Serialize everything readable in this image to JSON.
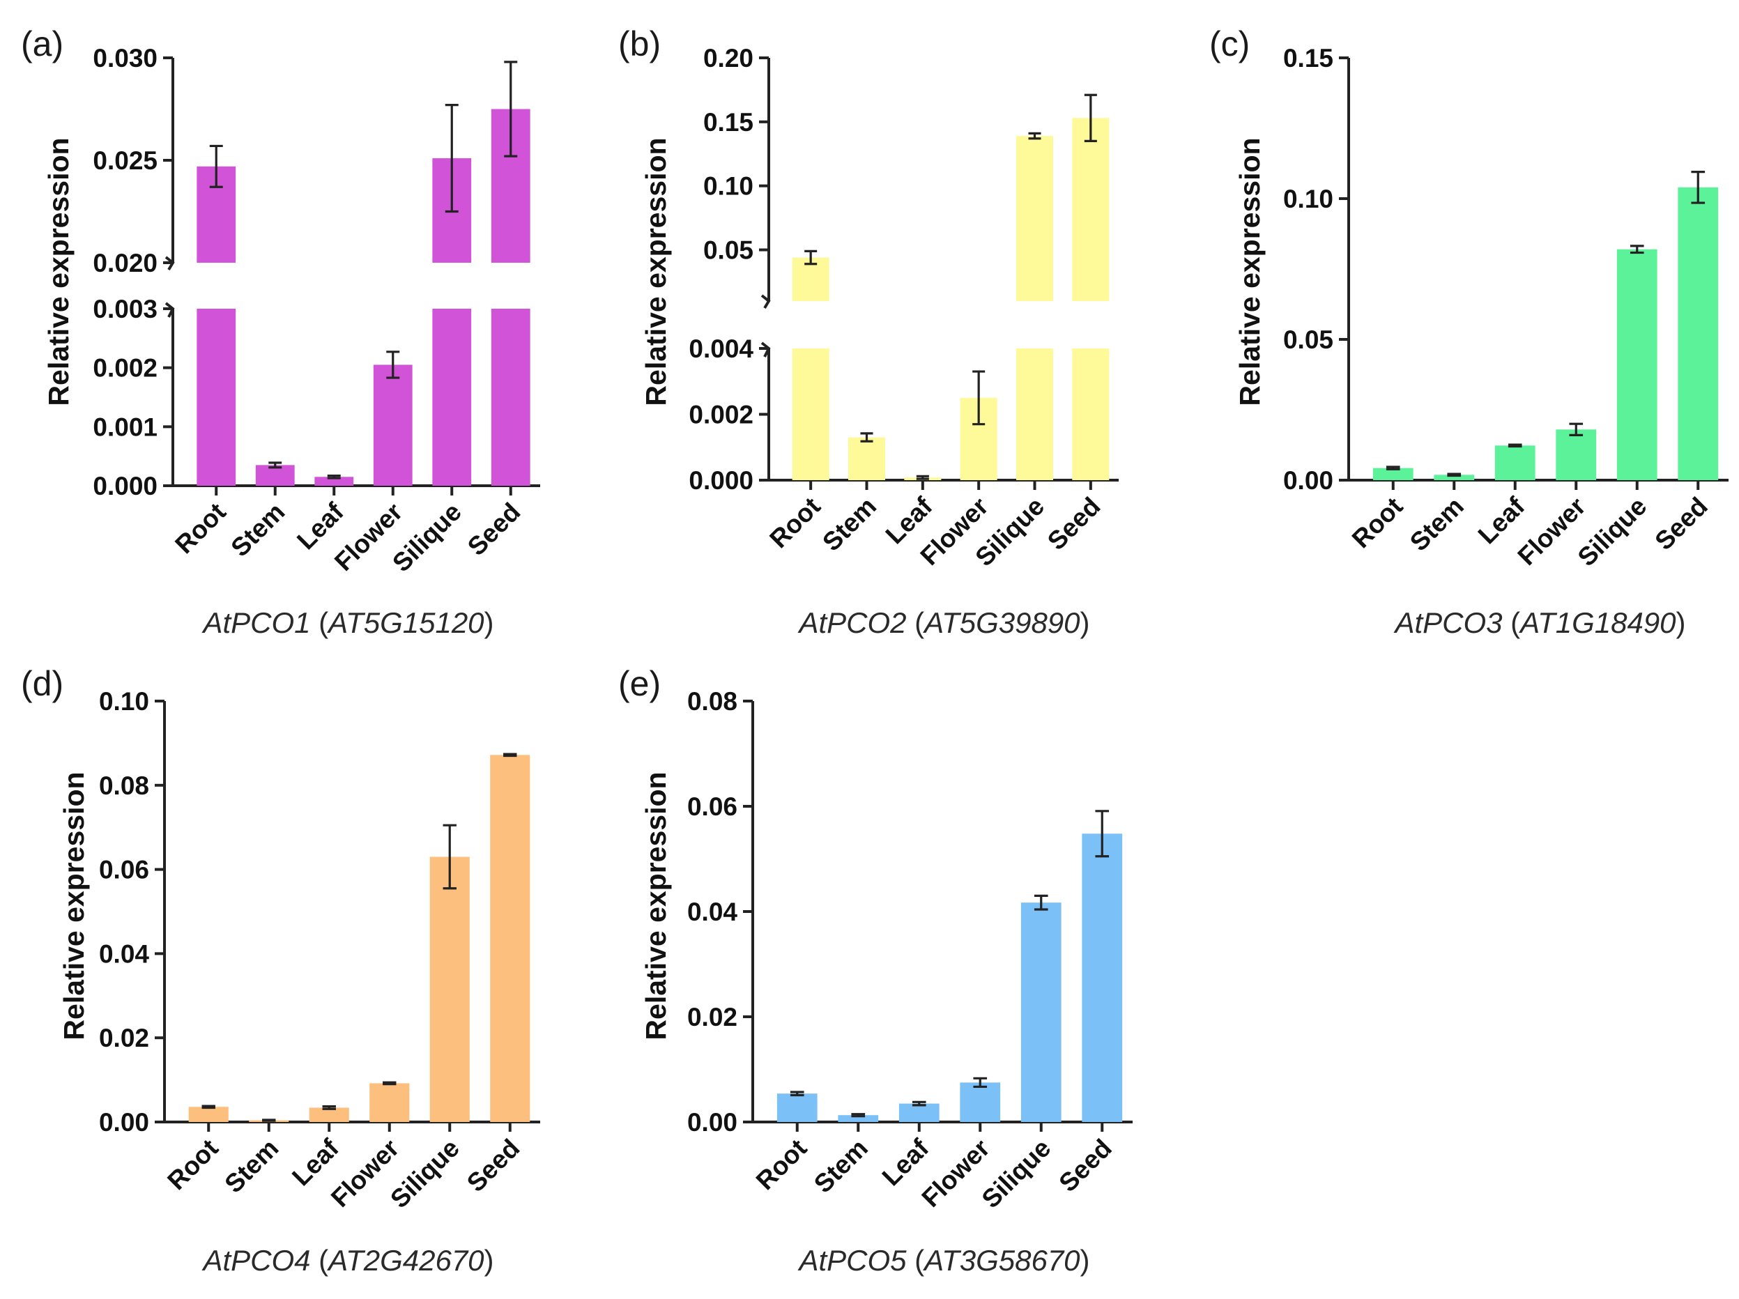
{
  "chart_data": [
    {
      "type": "bar",
      "panel": "(a)",
      "ylabel": "Relative expression",
      "gene_name": "AtPCO1",
      "gene_id": "AT5G15120",
      "categories": [
        "Root",
        "Stem",
        "Leaf",
        "Flower",
        "Silique",
        "Seed"
      ],
      "values": [
        0.0247,
        0.00035,
        0.00015,
        0.00205,
        0.0251,
        0.0275
      ],
      "errors": [
        0.001,
        4e-05,
        2e-05,
        0.00022,
        0.0026,
        0.0023
      ],
      "color": "#d153d8",
      "broken_axis": true,
      "lower_ylim": [
        0,
        0.003
      ],
      "lower_ticks": [
        "0.000",
        "0.001",
        "0.002",
        "0.003"
      ],
      "upper_ylim": [
        0.02,
        0.03
      ],
      "upper_ticks": [
        "0.020",
        "0.025",
        "0.030"
      ]
    },
    {
      "type": "bar",
      "panel": "(b)",
      "ylabel": "Relative expression",
      "gene_name": "AtPCO2",
      "gene_id": "AT5G39890",
      "categories": [
        "Root",
        "Stem",
        "Leaf",
        "Flower",
        "Silique",
        "Seed"
      ],
      "values": [
        0.044,
        0.0013,
        8e-05,
        0.0025,
        0.139,
        0.153
      ],
      "errors": [
        0.005,
        0.00012,
        4e-05,
        0.0008,
        0.002,
        0.018
      ],
      "color": "#fffa99",
      "broken_axis": true,
      "lower_ylim": [
        0,
        0.004
      ],
      "lower_ticks": [
        "0.000",
        "0.002",
        "0.004"
      ],
      "upper_ylim": [
        0.01,
        0.2
      ],
      "upper_ticks": [
        "0.05",
        "0.10",
        "0.15",
        "0.20"
      ]
    },
    {
      "type": "bar",
      "panel": "(c)",
      "ylabel": "Relative expression",
      "gene_name": "AtPCO3",
      "gene_id": "AT1G18490",
      "categories": [
        "Root",
        "Stem",
        "Leaf",
        "Flower",
        "Silique",
        "Seed"
      ],
      "values": [
        0.0043,
        0.0019,
        0.0123,
        0.018,
        0.082,
        0.104
      ],
      "errors": [
        0.0004,
        0.0003,
        0.0003,
        0.002,
        0.0012,
        0.0055
      ],
      "color": "#5cf29a",
      "broken_axis": false,
      "ylim": [
        0,
        0.15
      ],
      "ticks": [
        "0.00",
        "0.05",
        "0.10",
        "0.15"
      ]
    },
    {
      "type": "bar",
      "panel": "(d)",
      "ylabel": "Relative expression",
      "gene_name": "AtPCO4",
      "gene_id": "AT2G42670",
      "categories": [
        "Root",
        "Stem",
        "Leaf",
        "Flower",
        "Silique",
        "Seed"
      ],
      "values": [
        0.0036,
        0.0004,
        0.0034,
        0.0092,
        0.063,
        0.0872
      ],
      "errors": [
        0.0002,
        0.0001,
        0.0003,
        0.0002,
        0.0075,
        0.0002
      ],
      "color": "#fdbf7e",
      "broken_axis": false,
      "ylim": [
        0,
        0.1
      ],
      "ticks": [
        "0.00",
        "0.02",
        "0.04",
        "0.06",
        "0.08",
        "0.10"
      ]
    },
    {
      "type": "bar",
      "panel": "(e)",
      "ylabel": "Relative expression",
      "gene_name": "AtPCO5",
      "gene_id": "AT3G58670",
      "categories": [
        "Root",
        "Stem",
        "Leaf",
        "Flower",
        "Silique",
        "Seed"
      ],
      "values": [
        0.0054,
        0.0013,
        0.0035,
        0.0075,
        0.0417,
        0.0548
      ],
      "errors": [
        0.0003,
        0.0002,
        0.0003,
        0.0008,
        0.0013,
        0.0043
      ],
      "color": "#7cc0f8",
      "broken_axis": false,
      "ylim": [
        0,
        0.08
      ],
      "ticks": [
        "0.00",
        "0.02",
        "0.04",
        "0.06",
        "0.08"
      ]
    }
  ]
}
